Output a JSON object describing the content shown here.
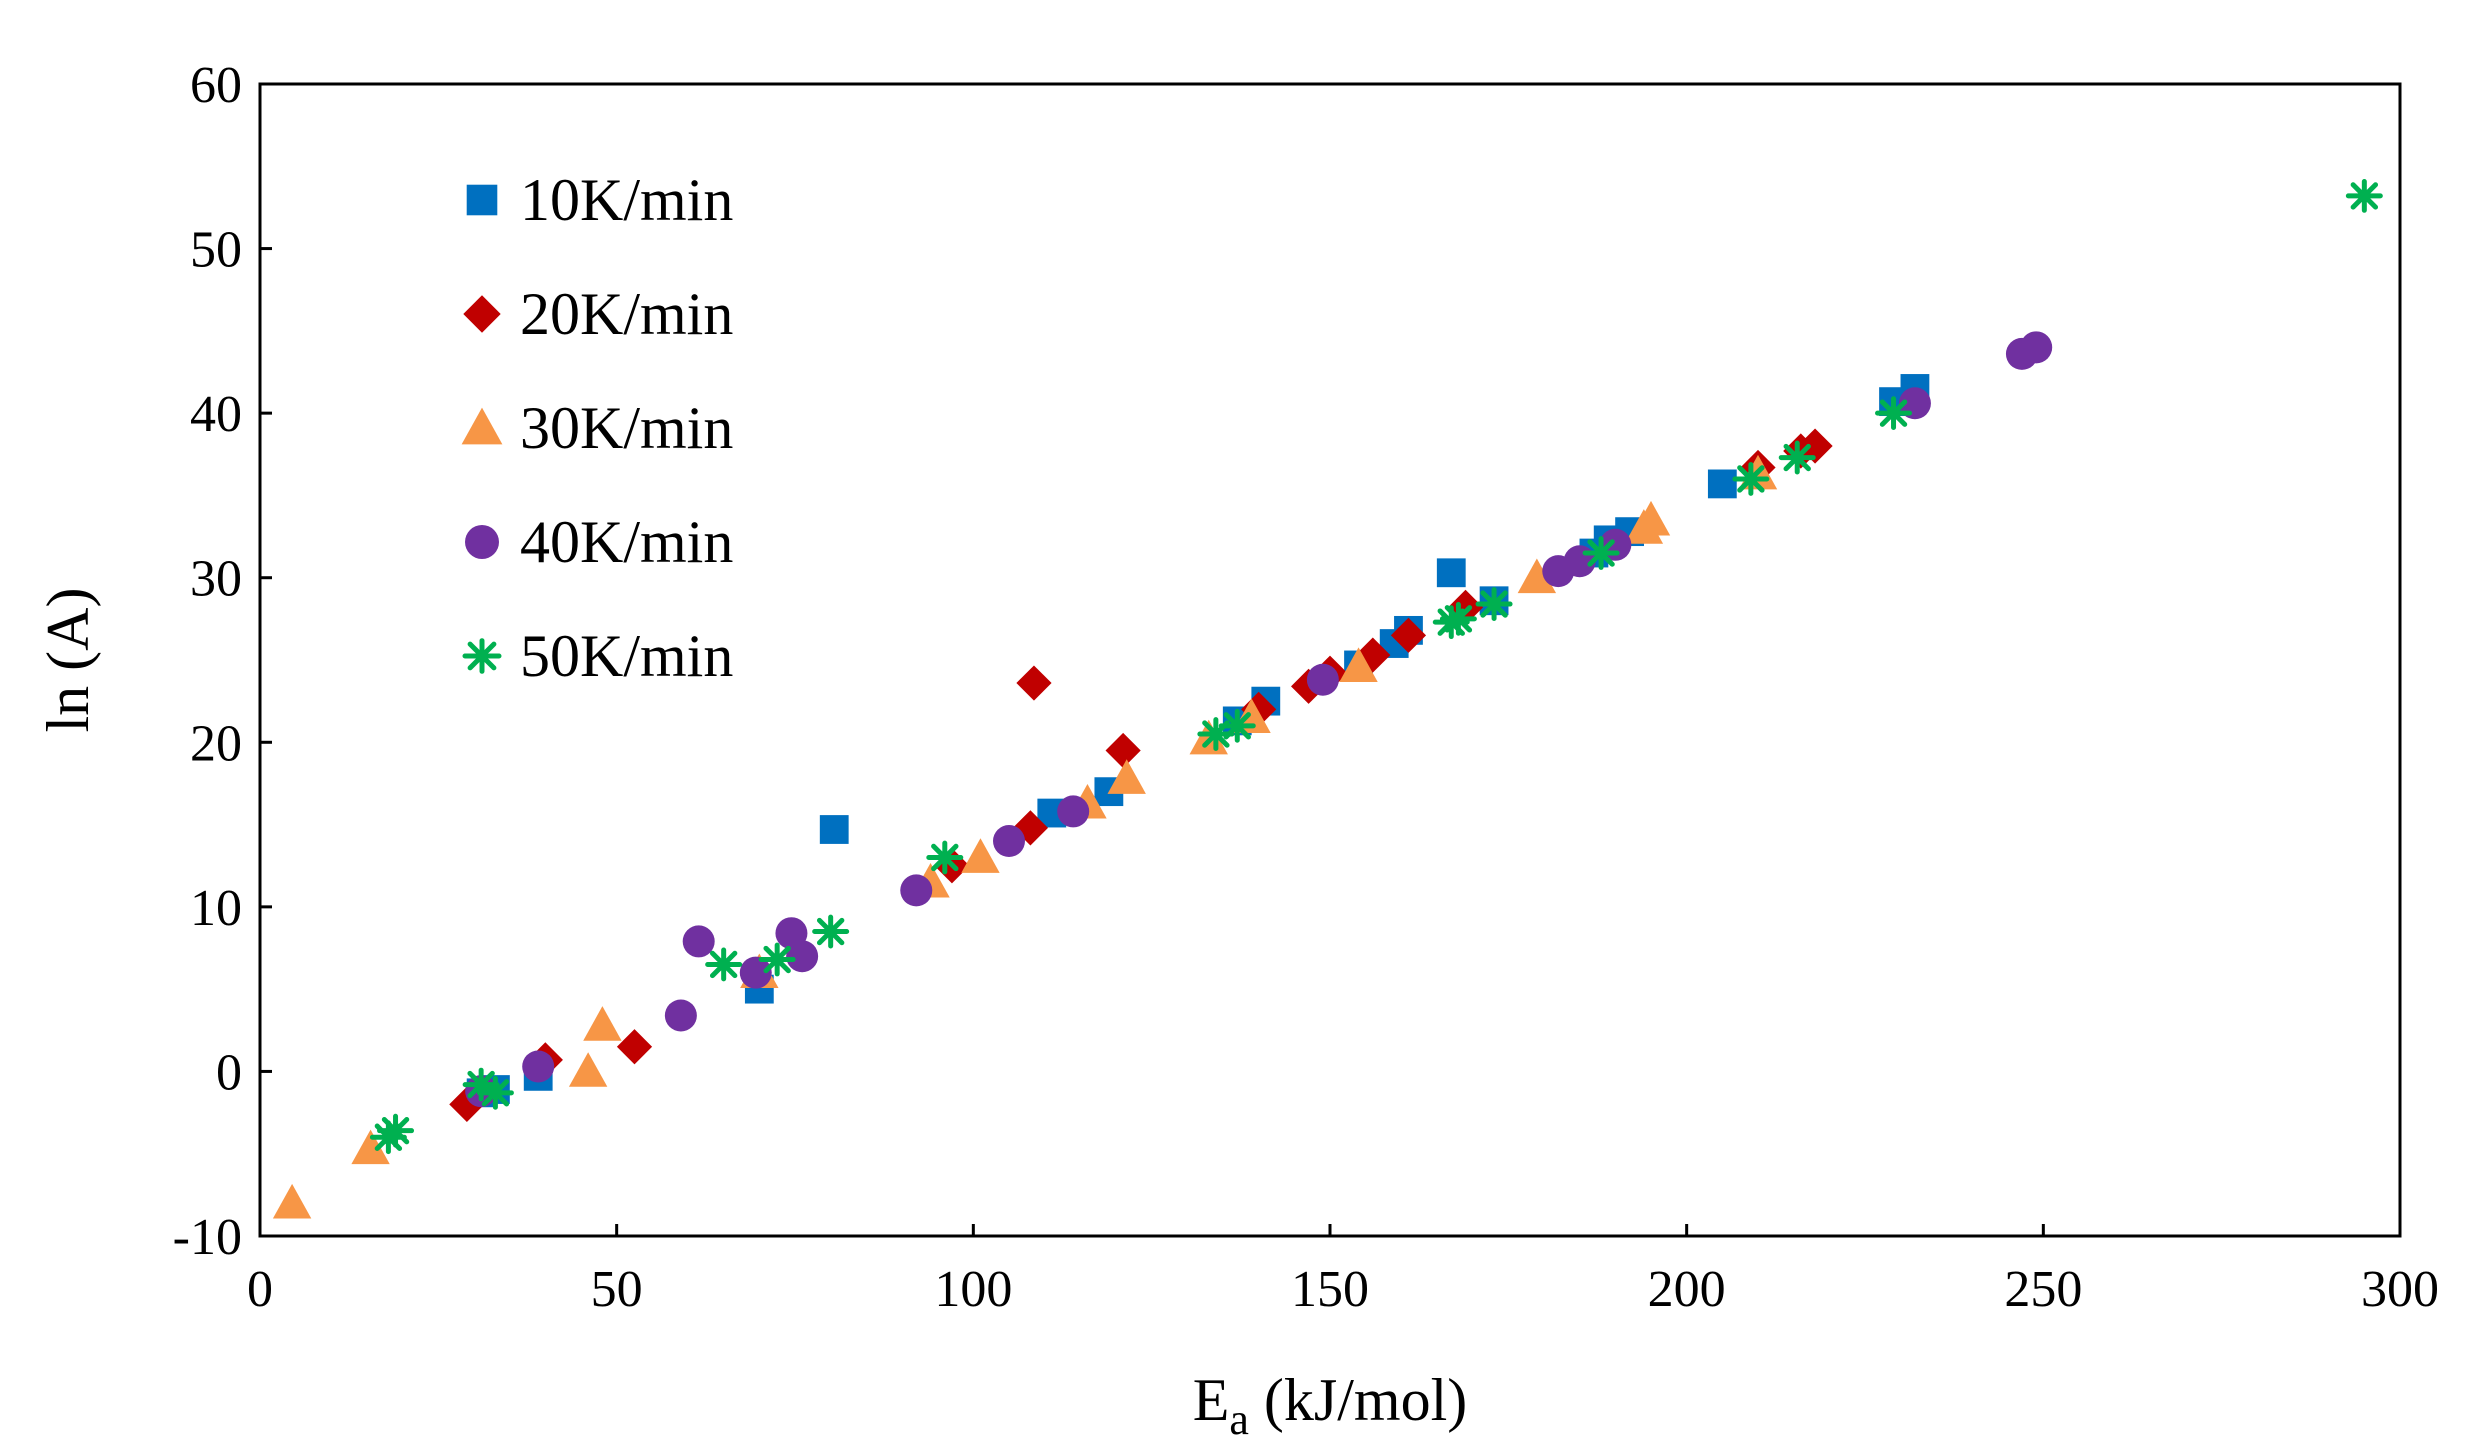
{
  "chart_data": {
    "type": "scatter",
    "title": "",
    "xlabel": {
      "main": "E",
      "subscript": "a",
      "rest": " (kJ/mol)"
    },
    "ylabel": "ln (A)",
    "xlim": [
      0,
      300
    ],
    "ylim": [
      -10,
      60
    ],
    "xticks": [
      "0",
      "50",
      "100",
      "150",
      "200",
      "250",
      "300"
    ],
    "yticks": [
      "-10",
      "0",
      "10",
      "20",
      "30",
      "40",
      "50",
      "60"
    ],
    "xtick_values": [
      0,
      50,
      100,
      150,
      200,
      250,
      300
    ],
    "ytick_values": [
      -10,
      0,
      10,
      20,
      30,
      40,
      50,
      60
    ],
    "grid": false,
    "legend_position": "top-left",
    "series": [
      {
        "name": "10K/min",
        "marker": "square",
        "color": "#0070C0",
        "points": [
          [
            31,
            -1.3
          ],
          [
            33,
            -1.1
          ],
          [
            39,
            -0.3
          ],
          [
            70,
            5
          ],
          [
            80.5,
            14.7
          ],
          [
            111,
            15.7
          ],
          [
            119,
            17
          ],
          [
            137,
            21.3
          ],
          [
            141,
            22.5
          ],
          [
            154,
            24.7
          ],
          [
            159,
            26
          ],
          [
            161,
            26.8
          ],
          [
            167,
            30.3
          ],
          [
            173,
            28.6
          ],
          [
            187,
            31.5
          ],
          [
            189,
            32.3
          ],
          [
            192,
            32.8
          ],
          [
            205,
            35.7
          ],
          [
            229,
            40.7
          ],
          [
            232,
            41.5
          ]
        ]
      },
      {
        "name": "20K/min",
        "marker": "diamond",
        "color": "#C00000",
        "points": [
          [
            29,
            -2
          ],
          [
            40,
            0.7
          ],
          [
            52.5,
            1.5
          ],
          [
            97,
            12.5
          ],
          [
            108,
            14.8
          ],
          [
            108.5,
            23.6
          ],
          [
            121,
            19.5
          ],
          [
            140,
            22
          ],
          [
            147,
            23.4
          ],
          [
            150,
            24.2
          ],
          [
            156,
            25.3
          ],
          [
            161,
            26.5
          ],
          [
            169,
            28.2
          ],
          [
            210,
            36.7
          ],
          [
            216,
            37.7
          ],
          [
            218,
            38
          ]
        ]
      },
      {
        "name": "30K/min",
        "marker": "triangle",
        "color": "#F79646",
        "points": [
          [
            4.5,
            -8
          ],
          [
            15.5,
            -4.7
          ],
          [
            46,
            0
          ],
          [
            48,
            2.8
          ],
          [
            70,
            6
          ],
          [
            94,
            11.5
          ],
          [
            101,
            13
          ],
          [
            116,
            16.3
          ],
          [
            121.5,
            17.8
          ],
          [
            133,
            20.2
          ],
          [
            139,
            21.5
          ],
          [
            154,
            24.6
          ],
          [
            179,
            30
          ],
          [
            194,
            33
          ],
          [
            195,
            33.5
          ],
          [
            210,
            36.3
          ]
        ]
      },
      {
        "name": "40K/min",
        "marker": "circle",
        "color": "#7030A0",
        "points": [
          [
            31,
            -1.2
          ],
          [
            39,
            0.3
          ],
          [
            59,
            3.4
          ],
          [
            61.5,
            7.9
          ],
          [
            69.5,
            6
          ],
          [
            74.5,
            8.4
          ],
          [
            76,
            7
          ],
          [
            92,
            11
          ],
          [
            105,
            14
          ],
          [
            114,
            15.8
          ],
          [
            149,
            23.8
          ],
          [
            182,
            30.4
          ],
          [
            185,
            31
          ],
          [
            190,
            32
          ],
          [
            232,
            40.6
          ],
          [
            247,
            43.6
          ],
          [
            249,
            44
          ]
        ]
      },
      {
        "name": "50K/min",
        "marker": "star",
        "color": "#00B050",
        "points": [
          [
            18,
            -4
          ],
          [
            19,
            -3.6
          ],
          [
            31,
            -0.8
          ],
          [
            33,
            -1.3
          ],
          [
            65,
            6.5
          ],
          [
            72.5,
            6.8
          ],
          [
            80,
            8.5
          ],
          [
            96,
            13
          ],
          [
            134,
            20.5
          ],
          [
            137,
            21
          ],
          [
            167,
            27.3
          ],
          [
            168,
            27.5
          ],
          [
            173,
            28.4
          ],
          [
            188,
            31.5
          ],
          [
            209,
            36
          ],
          [
            215.5,
            37.3
          ],
          [
            229,
            40
          ],
          [
            295,
            53.2
          ]
        ]
      }
    ]
  }
}
